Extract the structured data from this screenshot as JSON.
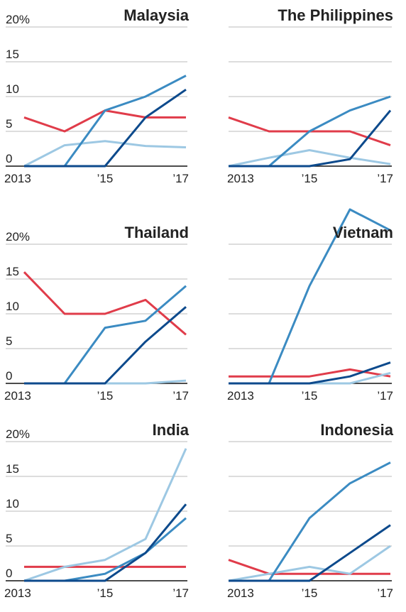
{
  "chart_data": [
    {
      "type": "line",
      "title": "Malaysia",
      "categories": [
        "2013",
        null,
        "’15",
        null,
        "’17"
      ],
      "ylim": [
        0,
        20
      ],
      "yticks": [
        0,
        5,
        10,
        15,
        {
          "value": 20,
          "label": "20%"
        }
      ],
      "show_ytick_labels": true,
      "grid": true,
      "series": [
        {
          "color": "#e03c4a",
          "values": [
            7,
            5,
            8,
            7,
            7
          ]
        },
        {
          "color": "#9dc8e3",
          "values": [
            0,
            3,
            3.6,
            2.9,
            2.7
          ]
        },
        {
          "color": "#3b8bc2",
          "values": [
            0,
            0,
            8,
            10,
            13
          ]
        },
        {
          "color": "#0d4a8c",
          "values": [
            0,
            0,
            0,
            7,
            11
          ]
        }
      ]
    },
    {
      "type": "line",
      "title": "The Philippines",
      "categories": [
        "2013",
        null,
        "’15",
        null,
        "’17"
      ],
      "ylim": [
        0,
        20
      ],
      "yticks": [
        0,
        5,
        10,
        15,
        20
      ],
      "show_ytick_labels": false,
      "grid": true,
      "series": [
        {
          "color": "#e03c4a",
          "values": [
            7,
            5,
            5,
            5,
            3
          ]
        },
        {
          "color": "#9dc8e3",
          "values": [
            0,
            1.2,
            2.3,
            1.2,
            0.3
          ]
        },
        {
          "color": "#3b8bc2",
          "values": [
            0,
            0,
            5,
            8,
            10
          ]
        },
        {
          "color": "#0d4a8c",
          "values": [
            0,
            0,
            0,
            1,
            8
          ]
        }
      ]
    },
    {
      "type": "line",
      "title": "Thailand",
      "categories": [
        "2013",
        null,
        "’15",
        null,
        "’17"
      ],
      "ylim": [
        0,
        26
      ],
      "yticks": [
        0,
        5,
        10,
        15,
        {
          "value": 20,
          "label": "20%"
        }
      ],
      "show_ytick_labels": true,
      "grid": true,
      "series": [
        {
          "color": "#e03c4a",
          "values": [
            16,
            10,
            10,
            12,
            7
          ]
        },
        {
          "color": "#9dc8e3",
          "values": [
            0,
            0,
            0,
            0,
            0.4
          ]
        },
        {
          "color": "#3b8bc2",
          "values": [
            0,
            0,
            8,
            9,
            14
          ]
        },
        {
          "color": "#0d4a8c",
          "values": [
            0,
            0,
            0,
            6,
            11
          ]
        }
      ]
    },
    {
      "type": "line",
      "title": "Vietnam",
      "categories": [
        "2013",
        null,
        "’15",
        null,
        "’17"
      ],
      "ylim": [
        0,
        26
      ],
      "yticks": [
        0,
        5,
        10,
        15,
        20
      ],
      "show_ytick_labels": false,
      "grid": true,
      "series": [
        {
          "color": "#e03c4a",
          "values": [
            1,
            1,
            1,
            2,
            1
          ]
        },
        {
          "color": "#9dc8e3",
          "values": [
            0,
            0,
            0,
            0,
            1.5
          ]
        },
        {
          "color": "#3b8bc2",
          "values": [
            0,
            0,
            14,
            25,
            22
          ]
        },
        {
          "color": "#0d4a8c",
          "values": [
            0,
            0,
            0,
            1,
            3
          ]
        }
      ]
    },
    {
      "type": "line",
      "title": "India",
      "categories": [
        "2013",
        null,
        "’15",
        null,
        "’17"
      ],
      "ylim": [
        0,
        20
      ],
      "yticks": [
        0,
        5,
        10,
        15,
        {
          "value": 20,
          "label": "20%"
        }
      ],
      "show_ytick_labels": true,
      "grid": true,
      "series": [
        {
          "color": "#e03c4a",
          "values": [
            2,
            2,
            2,
            2,
            2
          ]
        },
        {
          "color": "#9dc8e3",
          "values": [
            0,
            2,
            3,
            6,
            19
          ]
        },
        {
          "color": "#3b8bc2",
          "values": [
            0,
            0,
            1,
            4,
            9
          ]
        },
        {
          "color": "#0d4a8c",
          "values": [
            0,
            0,
            0,
            4,
            11
          ]
        }
      ]
    },
    {
      "type": "line",
      "title": "Indonesia",
      "categories": [
        "2013",
        null,
        "’15",
        null,
        "’17"
      ],
      "ylim": [
        0,
        20
      ],
      "yticks": [
        0,
        5,
        10,
        15,
        20
      ],
      "show_ytick_labels": false,
      "grid": true,
      "series": [
        {
          "color": "#e03c4a",
          "values": [
            3,
            1,
            1,
            1,
            1
          ]
        },
        {
          "color": "#9dc8e3",
          "values": [
            0,
            1,
            2,
            1,
            5
          ]
        },
        {
          "color": "#3b8bc2",
          "values": [
            0,
            0,
            9,
            14,
            17
          ]
        },
        {
          "color": "#0d4a8c",
          "values": [
            0,
            0,
            0,
            4,
            8
          ]
        }
      ]
    }
  ]
}
